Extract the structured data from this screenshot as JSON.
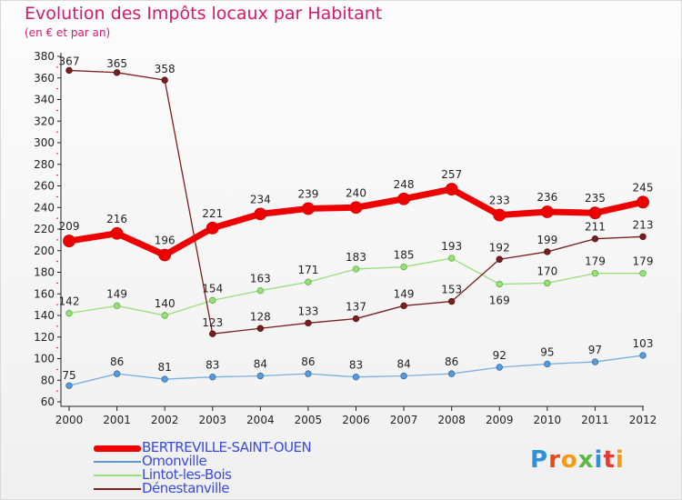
{
  "header": {
    "title": "Evolution des Impôts locaux par Habitant",
    "subtitle": "(en € et par an)"
  },
  "logo": {
    "text": "Proxiti"
  },
  "chart_data": {
    "type": "line",
    "title": "Evolution des Impôts locaux par Habitant",
    "subtitle": "(en € et par an)",
    "xlabel": "",
    "ylabel": "",
    "categories": [
      "2000",
      "2001",
      "2002",
      "2003",
      "2004",
      "2005",
      "2006",
      "2007",
      "2008",
      "2009",
      "2010",
      "2011",
      "2012"
    ],
    "ylim": [
      60,
      380
    ],
    "yticks": [
      60,
      80,
      100,
      120,
      140,
      160,
      180,
      200,
      220,
      240,
      260,
      280,
      300,
      320,
      340,
      360,
      380
    ],
    "grid": false,
    "legend_position": "bottom-left",
    "series": [
      {
        "name": "BERTREVILLE-SAINT-OUEN",
        "color": "#ee0000",
        "values": [
          209,
          216,
          196,
          221,
          234,
          239,
          240,
          248,
          257,
          233,
          236,
          235,
          245
        ]
      },
      {
        "name": "Omonville",
        "color": "#5b9bd5",
        "values": [
          75,
          86,
          81,
          83,
          84,
          86,
          83,
          84,
          86,
          92,
          95,
          97,
          103
        ]
      },
      {
        "name": "Lintot-les-Bois",
        "color": "#99e07a",
        "values": [
          142,
          149,
          140,
          154,
          163,
          171,
          183,
          185,
          193,
          169,
          170,
          179,
          179
        ]
      },
      {
        "name": "Dénestanville",
        "color": "#7a1f1f",
        "values": [
          367,
          365,
          358,
          123,
          128,
          133,
          137,
          149,
          153,
          192,
          199,
          211,
          213
        ]
      }
    ]
  }
}
